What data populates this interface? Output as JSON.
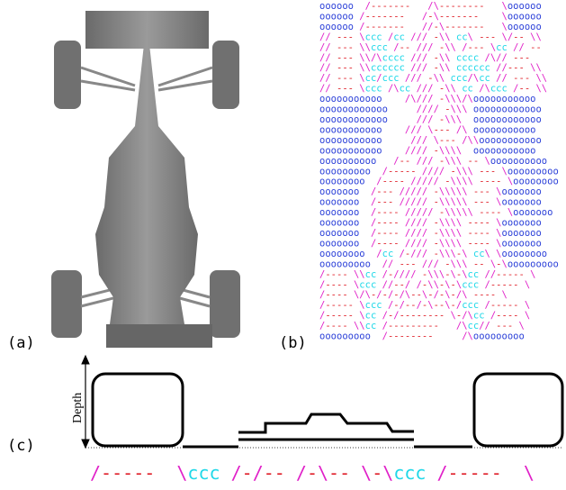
{
  "panels": [
    {
      "label": "(a)"
    },
    {
      "label": "(b)",
      "ascii_rows": [
        "oooooo  /-------   /\\--------   \\oooooo",
        "oooooo /-------   /-\\-------    \\oooooo",
        "oooooo /-------   //-\\-------   \\oooooo",
        "// --- \\ccc /cc /// -\\\\ cc\\ --- \\/-- \\\\",
        "// --- \\\\ccc /-- /// -\\\\ /--- \\cc // --",
        "// --- \\\\/\\cccc /// -\\\\ cccc /\\// ---",
        "// --- \\\\cccccc /// -\\\\ cccccc //--- \\\\",
        "// --- \\cc/ccc /// -\\\\ ccc/\\cc // --- \\\\",
        "// --- \\ccc /\\cc /// -\\\\ cc /\\ccc /-- \\\\",
        "ooooooooooo    /\\/// -\\\\\\/\\ooooooooooo",
        "oooooooooooo     //// -\\\\\\ oooooooooooo",
        "oooooooooooo     /// -\\\\\\  oooooooooooo",
        "ooooooooooo    /// \\--- /\\ ooooooooooo",
        "ooooooooooo     /// \\--- /\\\\ooooooooooo",
        "ooooooooooo    //// -\\\\\\\\  ooooooooooo",
        "oooooooooo   /-- /// -\\\\\\ -- \\oooooooooo",
        "ooooooooo  /----- //// -\\\\\\ --- \\ooooooooo",
        "oooooooo  /---- ///// -\\\\\\\\ ---- \\oooooooo",
        "ooooooo  /--- ///// -\\\\\\\\\\ --- \\ooooooo",
        "ooooooo  /--- ///// -\\\\\\\\\\ --- \\ooooooo",
        "ooooooo  /---- ///// -\\\\\\\\\\ ---- \\ooooooo",
        "ooooooo  /---- //// -\\\\\\\\ ---- \\ooooooo",
        "ooooooo  /---- //// -\\\\\\\\ ---- \\ooooooo",
        "ooooooo  /---- //// -\\\\\\\\ ---- \\ooooooo",
        "oooooooo  /cc /-/// -\\\\\\-\\ cc\\ \\oooooooo",
        "ooooooooo  // --- /// -\\\\\\ -- \\-\\ooooooooo",
        "/---- \\\\cc /-//// -\\\\\\-\\-\\cc //----- \\",
        "/---- \\ccc //--/ /-\\\\-\\-\\ccc /----- \\",
        "/---- \\/\\-/-/-/\\--\\-/-\\-/\\ ---- \\",
        "/----- \\ccc /-/--/-\\--\\-/ccc /----- \\",
        "/----- \\cc /-/-------- \\-/\\cc /---- \\",
        "/---- \\\\cc /---------   /\\cc// --- \\",
        "ooooooooo  /--------     /\\ooooooooo"
      ]
    },
    {
      "label": "(c)",
      "axis_label": "Depth",
      "ascii_row": "/-----  \\ccc /-/-- /-\\-- \\-\\ccc /-----  \\"
    }
  ]
}
